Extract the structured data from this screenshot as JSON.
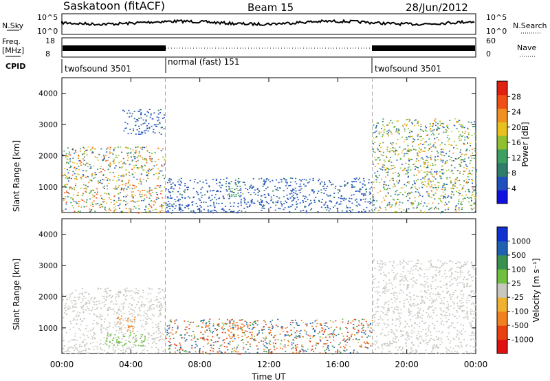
{
  "header": {
    "station": "Saskatoon (fitACF)",
    "beam": "Beam 15",
    "date": "28/Jun/2012"
  },
  "strip_panels": {
    "nsky_label": "N.Sky",
    "nsky_ticks": [
      "10^5",
      "10^0"
    ],
    "nsearch_label": "N.Search",
    "nsearch_ticks": [
      "10^5",
      "10^0"
    ],
    "freq_label_line1": "Freq.",
    "freq_label_line2": "[MHz]",
    "freq_ticks": [
      "18",
      "8"
    ],
    "nave_label": "Nave",
    "nave_ticks": [
      "60",
      "0"
    ],
    "cpid_label": "CPID",
    "cpid_segments": [
      {
        "label": "twofsound 3501",
        "start_hour": 0,
        "end_hour": 6
      },
      {
        "label": "normal (fast) 151",
        "start_hour": 6,
        "end_hour": 18
      },
      {
        "label": "twofsound 3501",
        "start_hour": 18,
        "end_hour": 24
      }
    ]
  },
  "axes": {
    "ylabel": "Slant Range [km]",
    "yticks": [
      "1000",
      "2000",
      "3000",
      "4000"
    ],
    "xlabel": "Time UT",
    "xticks": [
      "00:00",
      "04:00",
      "08:00",
      "12:00",
      "16:00",
      "20:00",
      "00:00"
    ]
  },
  "colorbars": {
    "power": {
      "label": "Power [dB]",
      "ticks": [
        "4",
        "8",
        "12",
        "16",
        "20",
        "24",
        "28"
      ],
      "colors": [
        "#1010e0",
        "#2050c0",
        "#2e7d6a",
        "#3da060",
        "#90c030",
        "#e8c020",
        "#f09020",
        "#f05018",
        "#e02010"
      ]
    },
    "velocity": {
      "label": "Velocity [m s⁻¹]",
      "ticks": [
        "1000",
        "500",
        "100",
        "25",
        "-25",
        "-100",
        "-500",
        "-1000"
      ],
      "colors": [
        "#1030d0",
        "#2060b0",
        "#3a9050",
        "#70c040",
        "#c8c8c0",
        "#f0b030",
        "#f08020",
        "#e84010",
        "#e01010"
      ]
    }
  },
  "chart_data": [
    {
      "type": "heatmap",
      "title": "Power",
      "x_range_hours": [
        0,
        24
      ],
      "y_range_km": [
        180,
        4500
      ],
      "colorbar_range_db": [
        0,
        32
      ],
      "regions": [
        {
          "t": [
            0.0,
            6.0
          ],
          "range_km": [
            180,
            2300
          ],
          "power_db": [
            4,
            28
          ]
        },
        {
          "t": [
            3.5,
            5.9
          ],
          "range_km": [
            2700,
            3500
          ],
          "power_db": [
            4,
            8
          ]
        },
        {
          "t": [
            6.0,
            18.0
          ],
          "range_km": [
            180,
            1300
          ],
          "power_db": [
            4,
            8
          ]
        },
        {
          "t": [
            9.5,
            10.5
          ],
          "range_km": [
            700,
            1200
          ],
          "power_db": [
            8,
            16
          ]
        },
        {
          "t": [
            18.0,
            24.0
          ],
          "range_km": [
            180,
            3200
          ],
          "power_db": [
            4,
            24
          ]
        }
      ]
    },
    {
      "type": "heatmap",
      "title": "Velocity",
      "x_range_hours": [
        0,
        24
      ],
      "y_range_km": [
        180,
        4500
      ],
      "regions": [
        {
          "t": [
            0.0,
            6.0
          ],
          "range_km": [
            180,
            2300
          ],
          "velocity_ms": [
            -25,
            25
          ]
        },
        {
          "t": [
            3.2,
            4.2
          ],
          "range_km": [
            900,
            1400
          ],
          "velocity_ms": [
            -500,
            -100
          ]
        },
        {
          "t": [
            2.5,
            4.8
          ],
          "range_km": [
            400,
            900
          ],
          "velocity_ms": [
            25,
            100
          ]
        },
        {
          "t": [
            9.5,
            10.5
          ],
          "range_km": [
            700,
            1200
          ],
          "velocity_ms": [
            -500,
            -100
          ]
        },
        {
          "t": [
            6.0,
            18.0
          ],
          "range_km": [
            180,
            1300
          ],
          "velocity_ms": [
            -1000,
            1000
          ]
        },
        {
          "t": [
            18.0,
            24.0
          ],
          "range_km": [
            180,
            3200
          ],
          "velocity_ms": [
            -25,
            25
          ]
        }
      ]
    }
  ]
}
